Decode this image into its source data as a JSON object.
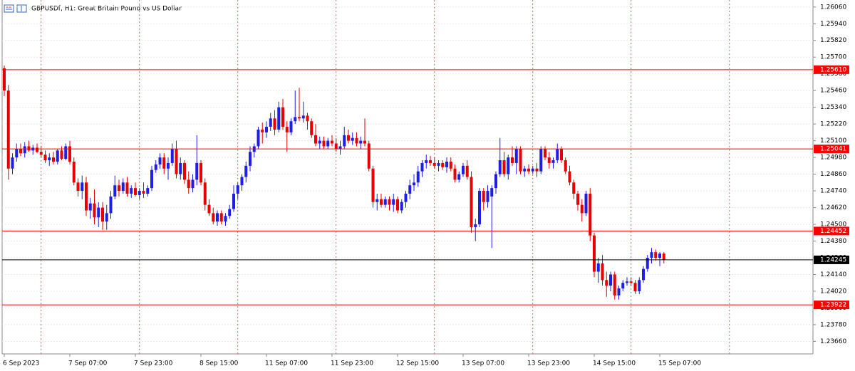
{
  "chart_data": {
    "type": "candlestick",
    "title": "GBPUSDf, H1:  Great Britain Pound vs US Dollar",
    "up_color": "#1e1ee6",
    "down_color": "#e60000",
    "ylim": [
      1.2357,
      1.2611
    ],
    "yticks": [
      {
        "value": 1.2606,
        "label": "1.26060"
      },
      {
        "value": 1.2594,
        "label": "1.25940"
      },
      {
        "value": 1.2582,
        "label": "1.25820"
      },
      {
        "value": 1.257,
        "label": "1.25700"
      },
      {
        "value": 1.2558,
        "label": "1.25580"
      },
      {
        "value": 1.2546,
        "label": "1.25460"
      },
      {
        "value": 1.2534,
        "label": "1.25340"
      },
      {
        "value": 1.2522,
        "label": "1.25220"
      },
      {
        "value": 1.251,
        "label": "1.25100"
      },
      {
        "value": 1.2498,
        "label": "1.24980"
      },
      {
        "value": 1.2486,
        "label": "1.24860"
      },
      {
        "value": 1.2474,
        "label": "1.24740"
      },
      {
        "value": 1.2462,
        "label": "1.24620"
      },
      {
        "value": 1.245,
        "label": "1.24500"
      },
      {
        "value": 1.2438,
        "label": "1.24380"
      },
      {
        "value": 1.2426,
        "label": "1.24260"
      },
      {
        "value": 1.2414,
        "label": "1.24140"
      },
      {
        "value": 1.2402,
        "label": "1.24020"
      },
      {
        "value": 1.239,
        "label": "1.23900"
      },
      {
        "value": 1.2378,
        "label": "1.23780"
      },
      {
        "value": 1.2366,
        "label": "1.23660"
      }
    ],
    "levels": [
      {
        "value": 1.2561,
        "label": "1.25610",
        "color": "#ff0000"
      },
      {
        "value": 1.25041,
        "label": "1.25041",
        "color": "#ff0000"
      },
      {
        "value": 1.24452,
        "label": "1.24452",
        "color": "#ff0000"
      },
      {
        "value": 1.23922,
        "label": "1.23922",
        "color": "#ff0000"
      },
      {
        "value": 1.24245,
        "label": "1.24245",
        "color": "#000000"
      }
    ],
    "categories": [
      "6 Sep 2023",
      null,
      null,
      null,
      null,
      null,
      null,
      null,
      null,
      null,
      null,
      null,
      null,
      null,
      null,
      null,
      "7 Sep 07:00",
      null,
      null,
      null,
      null,
      null,
      null,
      null,
      null,
      null,
      null,
      null,
      null,
      null,
      null,
      null,
      "7 Sep 23:00",
      null,
      null,
      null,
      null,
      null,
      null,
      null,
      null,
      null,
      null,
      null,
      null,
      null,
      null,
      null,
      "8 Sep 15:00",
      null,
      null,
      null,
      null,
      null,
      null,
      null,
      null,
      null,
      null,
      null,
      null,
      null,
      null,
      null,
      "11 Sep 07:00",
      null,
      null,
      null,
      null,
      null,
      null,
      null,
      null,
      null,
      null,
      null,
      null,
      null,
      null,
      null,
      "11 Sep 23:00",
      null,
      null,
      null,
      null,
      null,
      null,
      null,
      null,
      null,
      null,
      null,
      null,
      null,
      null,
      null,
      "12 Sep 15:00",
      null,
      null,
      null,
      null,
      null,
      null,
      null,
      null,
      null,
      null,
      null,
      null,
      null,
      null,
      null,
      "13 Sep 07:00",
      null,
      null,
      null,
      null,
      null,
      null,
      null,
      null,
      null,
      null,
      null,
      null,
      null,
      null,
      null,
      "13 Sep 23:00",
      null,
      null,
      null,
      null,
      null,
      null,
      null,
      null,
      null,
      null,
      null,
      null,
      null,
      null,
      null,
      "14 Sep 15:00",
      null,
      null,
      null,
      null,
      null,
      null,
      null,
      null,
      null,
      null,
      null,
      null,
      null,
      null,
      null,
      "15 Sep 07:00",
      null
    ],
    "candles": [
      [
        1.2562,
        1.2564,
        1.2542,
        1.2546
      ],
      [
        1.2546,
        1.255,
        1.2482,
        1.249
      ],
      [
        1.249,
        1.2501,
        1.2486,
        1.2498
      ],
      [
        1.2498,
        1.2508,
        1.2495,
        1.2504
      ],
      [
        1.2504,
        1.2508,
        1.2499,
        1.2501
      ],
      [
        1.2501,
        1.2509,
        1.2498,
        1.2506
      ],
      [
        1.2506,
        1.251,
        1.2502,
        1.2503
      ],
      [
        1.2503,
        1.2507,
        1.25,
        1.2505
      ],
      [
        1.2505,
        1.2508,
        1.2501,
        1.2502
      ],
      [
        1.2502,
        1.2506,
        1.2498,
        1.25
      ],
      [
        1.25,
        1.2503,
        1.2494,
        1.2496
      ],
      [
        1.2496,
        1.2501,
        1.2492,
        1.2498
      ],
      [
        1.2498,
        1.2502,
        1.2493,
        1.2495
      ],
      [
        1.2495,
        1.2504,
        1.2493,
        1.2503
      ],
      [
        1.2503,
        1.2506,
        1.2496,
        1.2497
      ],
      [
        1.2497,
        1.2508,
        1.2496,
        1.2506
      ],
      [
        1.2506,
        1.251,
        1.2493,
        1.2495
      ],
      [
        1.2495,
        1.2498,
        1.2478,
        1.248
      ],
      [
        1.248,
        1.2483,
        1.247,
        1.2474
      ],
      [
        1.2474,
        1.2485,
        1.2468,
        1.248
      ],
      [
        1.248,
        1.2484,
        1.2456,
        1.246
      ],
      [
        1.246,
        1.2469,
        1.2454,
        1.2465
      ],
      [
        1.2465,
        1.2475,
        1.245,
        1.2455
      ],
      [
        1.2455,
        1.2466,
        1.2448,
        1.2462
      ],
      [
        1.2462,
        1.2466,
        1.2446,
        1.2452
      ],
      [
        1.2452,
        1.2464,
        1.2446,
        1.2458
      ],
      [
        1.2458,
        1.2474,
        1.2454,
        1.247
      ],
      [
        1.247,
        1.2485,
        1.2468,
        1.2478
      ],
      [
        1.2478,
        1.2482,
        1.247,
        1.2474
      ],
      [
        1.2474,
        1.2483,
        1.2472,
        1.248
      ],
      [
        1.248,
        1.2484,
        1.247,
        1.2472
      ],
      [
        1.2472,
        1.2478,
        1.2469,
        1.2476
      ],
      [
        1.2476,
        1.248,
        1.247,
        1.2471
      ],
      [
        1.2471,
        1.2476,
        1.2468,
        1.2474
      ],
      [
        1.2474,
        1.248,
        1.2469,
        1.2472
      ],
      [
        1.2472,
        1.2478,
        1.247,
        1.2476
      ],
      [
        1.2476,
        1.2492,
        1.2474,
        1.2489
      ],
      [
        1.2489,
        1.2496,
        1.2487,
        1.2493
      ],
      [
        1.2493,
        1.2501,
        1.249,
        1.2498
      ],
      [
        1.2498,
        1.2501,
        1.2486,
        1.249
      ],
      [
        1.249,
        1.2498,
        1.2482,
        1.2494
      ],
      [
        1.2494,
        1.2508,
        1.2492,
        1.2504
      ],
      [
        1.2504,
        1.251,
        1.2483,
        1.2486
      ],
      [
        1.2486,
        1.2498,
        1.2482,
        1.2494
      ],
      [
        1.2494,
        1.2496,
        1.2479,
        1.2482
      ],
      [
        1.2482,
        1.2488,
        1.2472,
        1.2476
      ],
      [
        1.2476,
        1.2486,
        1.2473,
        1.2482
      ],
      [
        1.2482,
        1.2514,
        1.2478,
        1.2494
      ],
      [
        1.2494,
        1.2496,
        1.2478,
        1.248
      ],
      [
        1.248,
        1.2483,
        1.246,
        1.2464
      ],
      [
        1.2464,
        1.2468,
        1.2456,
        1.2458
      ],
      [
        1.2458,
        1.2462,
        1.245,
        1.2452
      ],
      [
        1.2452,
        1.246,
        1.2449,
        1.2458
      ],
      [
        1.2458,
        1.246,
        1.245,
        1.2452
      ],
      [
        1.2452,
        1.2458,
        1.2449,
        1.2456
      ],
      [
        1.2456,
        1.2464,
        1.2454,
        1.2461
      ],
      [
        1.2461,
        1.2478,
        1.2459,
        1.2472
      ],
      [
        1.2472,
        1.248,
        1.2468,
        1.2478
      ],
      [
        1.2478,
        1.2486,
        1.2474,
        1.2484
      ],
      [
        1.2484,
        1.2495,
        1.248,
        1.2492
      ],
      [
        1.2492,
        1.2506,
        1.2488,
        1.2502
      ],
      [
        1.2502,
        1.2508,
        1.2498,
        1.2506
      ],
      [
        1.2506,
        1.252,
        1.2504,
        1.2518
      ],
      [
        1.2518,
        1.2523,
        1.2508,
        1.2516
      ],
      [
        1.2516,
        1.2524,
        1.2512,
        1.252
      ],
      [
        1.252,
        1.253,
        1.2517,
        1.2526
      ],
      [
        1.2526,
        1.2532,
        1.2514,
        1.2518
      ],
      [
        1.2518,
        1.2538,
        1.2516,
        1.2534
      ],
      [
        1.2534,
        1.254,
        1.2518,
        1.252
      ],
      [
        1.252,
        1.2524,
        1.2502,
        1.2516
      ],
      [
        1.2516,
        1.2526,
        1.2514,
        1.2524
      ],
      [
        1.2524,
        1.2546,
        1.2522,
        1.2527
      ],
      [
        1.2527,
        1.2548,
        1.2524,
        1.2526
      ],
      [
        1.2526,
        1.2538,
        1.2523,
        1.2528
      ],
      [
        1.2528,
        1.253,
        1.2518,
        1.2524
      ],
      [
        1.2524,
        1.2526,
        1.2512,
        1.2514
      ],
      [
        1.2514,
        1.2522,
        1.2506,
        1.2508
      ],
      [
        1.2508,
        1.2513,
        1.2504,
        1.251
      ],
      [
        1.251,
        1.2513,
        1.2504,
        1.2506
      ],
      [
        1.2506,
        1.2512,
        1.2504,
        1.251
      ],
      [
        1.251,
        1.2514,
        1.2506,
        1.2508
      ],
      [
        1.2508,
        1.2512,
        1.2502,
        1.2504
      ],
      [
        1.2504,
        1.251,
        1.25,
        1.2506
      ],
      [
        1.2506,
        1.252,
        1.2504,
        1.2514
      ],
      [
        1.2514,
        1.2518,
        1.2508,
        1.251
      ],
      [
        1.251,
        1.2516,
        1.2507,
        1.2512
      ],
      [
        1.2512,
        1.2516,
        1.2506,
        1.2508
      ],
      [
        1.2508,
        1.2513,
        1.2504,
        1.251
      ],
      [
        1.251,
        1.2526,
        1.2506,
        1.2508
      ],
      [
        1.2508,
        1.251,
        1.2488,
        1.249
      ],
      [
        1.249,
        1.2492,
        1.2462,
        1.2466
      ],
      [
        1.2466,
        1.2472,
        1.246,
        1.2468
      ],
      [
        1.2468,
        1.2472,
        1.2462,
        1.2464
      ],
      [
        1.2464,
        1.247,
        1.2462,
        1.2468
      ],
      [
        1.2468,
        1.247,
        1.246,
        1.2464
      ],
      [
        1.2464,
        1.2472,
        1.2459,
        1.2468
      ],
      [
        1.2468,
        1.247,
        1.2458,
        1.246
      ],
      [
        1.246,
        1.2468,
        1.2458,
        1.2466
      ],
      [
        1.2466,
        1.2474,
        1.2462,
        1.2472
      ],
      [
        1.2472,
        1.2482,
        1.2468,
        1.2478
      ],
      [
        1.2478,
        1.2486,
        1.2474,
        1.248
      ],
      [
        1.248,
        1.2492,
        1.2477,
        1.2488
      ],
      [
        1.2488,
        1.2496,
        1.2484,
        1.2494
      ],
      [
        1.2494,
        1.25,
        1.249,
        1.2496
      ],
      [
        1.2496,
        1.2499,
        1.2492,
        1.2494
      ],
      [
        1.2494,
        1.2498,
        1.249,
        1.2492
      ],
      [
        1.2492,
        1.2496,
        1.2488,
        1.2494
      ],
      [
        1.2494,
        1.2496,
        1.2489,
        1.2491
      ],
      [
        1.2491,
        1.2498,
        1.2487,
        1.2495
      ],
      [
        1.2495,
        1.2498,
        1.2488,
        1.249
      ],
      [
        1.249,
        1.2493,
        1.248,
        1.2482
      ],
      [
        1.2482,
        1.2488,
        1.248,
        1.2486
      ],
      [
        1.2486,
        1.2494,
        1.2484,
        1.2492
      ],
      [
        1.2492,
        1.2496,
        1.2482,
        1.2484
      ],
      [
        1.2484,
        1.2488,
        1.2444,
        1.2448
      ],
      [
        1.2448,
        1.2454,
        1.2438,
        1.245
      ],
      [
        1.245,
        1.2476,
        1.2448,
        1.2474
      ],
      [
        1.2474,
        1.2476,
        1.246,
        1.2466
      ],
      [
        1.2466,
        1.2478,
        1.2462,
        1.2474
      ],
      [
        1.247,
        1.2478,
        1.2433,
        1.2476
      ],
      [
        1.2476,
        1.2488,
        1.2472,
        1.2486
      ],
      [
        1.2486,
        1.2512,
        1.2484,
        1.2496
      ],
      [
        1.2496,
        1.2502,
        1.2484,
        1.2486
      ],
      [
        1.2486,
        1.25,
        1.2482,
        1.2498
      ],
      [
        1.2498,
        1.2506,
        1.2492,
        1.2494
      ],
      [
        1.2494,
        1.2506,
        1.2486,
        1.2504
      ],
      [
        1.2504,
        1.2506,
        1.2486,
        1.2488
      ],
      [
        1.2488,
        1.2492,
        1.2484,
        1.249
      ],
      [
        1.249,
        1.2493,
        1.2486,
        1.2488
      ],
      [
        1.2488,
        1.2492,
        1.2486,
        1.249
      ],
      [
        1.249,
        1.2494,
        1.2484,
        1.2488
      ],
      [
        1.2488,
        1.2506,
        1.2486,
        1.2504
      ],
      [
        1.2504,
        1.2506,
        1.2496,
        1.2498
      ],
      [
        1.2498,
        1.2502,
        1.249,
        1.2494
      ],
      [
        1.2494,
        1.2498,
        1.249,
        1.2496
      ],
      [
        1.2496,
        1.2508,
        1.2494,
        1.2504
      ],
      [
        1.2504,
        1.2506,
        1.2494,
        1.2496
      ],
      [
        1.2496,
        1.2498,
        1.2486,
        1.2488
      ],
      [
        1.2488,
        1.2492,
        1.2478,
        1.248
      ],
      [
        1.248,
        1.2482,
        1.2468,
        1.2472
      ],
      [
        1.2472,
        1.2474,
        1.246,
        1.2464
      ],
      [
        1.2464,
        1.2468,
        1.2452,
        1.2458
      ],
      [
        1.2458,
        1.2474,
        1.2456,
        1.2472
      ],
      [
        1.2472,
        1.2476,
        1.2438,
        1.2442
      ],
      [
        1.2442,
        1.2444,
        1.2412,
        1.2416
      ],
      [
        1.2416,
        1.2426,
        1.2408,
        1.2422
      ],
      [
        1.2422,
        1.2428,
        1.2406,
        1.241
      ],
      [
        1.241,
        1.2416,
        1.2398,
        1.2406
      ],
      [
        1.2406,
        1.2416,
        1.2402,
        1.2414
      ],
      [
        1.2414,
        1.2416,
        1.2396,
        1.2399
      ],
      [
        1.2399,
        1.2406,
        1.2396,
        1.2404
      ],
      [
        1.2404,
        1.241,
        1.2402,
        1.2408
      ],
      [
        1.2408,
        1.2412,
        1.2406,
        1.2409
      ],
      [
        1.2409,
        1.2412,
        1.2406,
        1.2408
      ],
      [
        1.2408,
        1.241,
        1.24,
        1.2402
      ],
      [
        1.2402,
        1.2412,
        1.24,
        1.241
      ],
      [
        1.241,
        1.242,
        1.2408,
        1.2418
      ],
      [
        1.2418,
        1.2428,
        1.2416,
        1.2426
      ],
      [
        1.2426,
        1.2433,
        1.2422,
        1.243
      ],
      [
        1.243,
        1.2432,
        1.2424,
        1.2426
      ],
      [
        1.2426,
        1.243,
        1.242,
        1.2429
      ],
      [
        1.2429,
        1.243,
        1.2422,
        1.24245
      ]
    ]
  }
}
